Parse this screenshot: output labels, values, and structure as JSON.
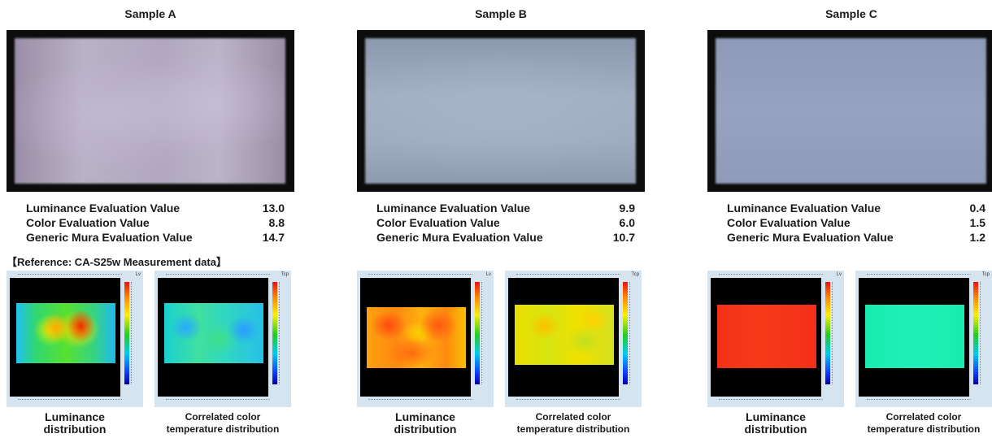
{
  "samples": [
    {
      "title": "Sample A",
      "luminance_label": "Luminance Evaluation Value",
      "luminance_value": "13.0",
      "color_label": "Color Evaluation Value",
      "color_value": "8.8",
      "mura_label": "Generic Mura Evaluation Value",
      "mura_value": "14.7"
    },
    {
      "title": "Sample B",
      "luminance_label": "Luminance Evaluation Value",
      "luminance_value": "9.9",
      "color_label": "Color Evaluation Value",
      "color_value": "6.0",
      "mura_label": "Generic Mura Evaluation Value",
      "mura_value": "10.7"
    },
    {
      "title": "Sample C",
      "luminance_label": "Luminance Evaluation Value",
      "luminance_value": "0.4",
      "color_label": "Color Evaluation Value",
      "color_value": "1.5",
      "mura_label": "Generic Mura Evaluation Value",
      "mura_value": "1.2"
    }
  ],
  "reference_label": "【Reference: CA-S25w Measurement data】",
  "captions": {
    "luminance_line1": "Luminance",
    "luminance_line2": "distribution",
    "cct_line1": "Correlated color",
    "cct_line2": "temperature distribution"
  },
  "map_corner_labels": {
    "luminance": "Lv",
    "cct": "Tcp"
  },
  "colors": {
    "panel_bezel": "#0c0c0c",
    "map_background": "#d6e4f0",
    "scale_high": "#ee1111",
    "scale_low": "#0000aa"
  }
}
